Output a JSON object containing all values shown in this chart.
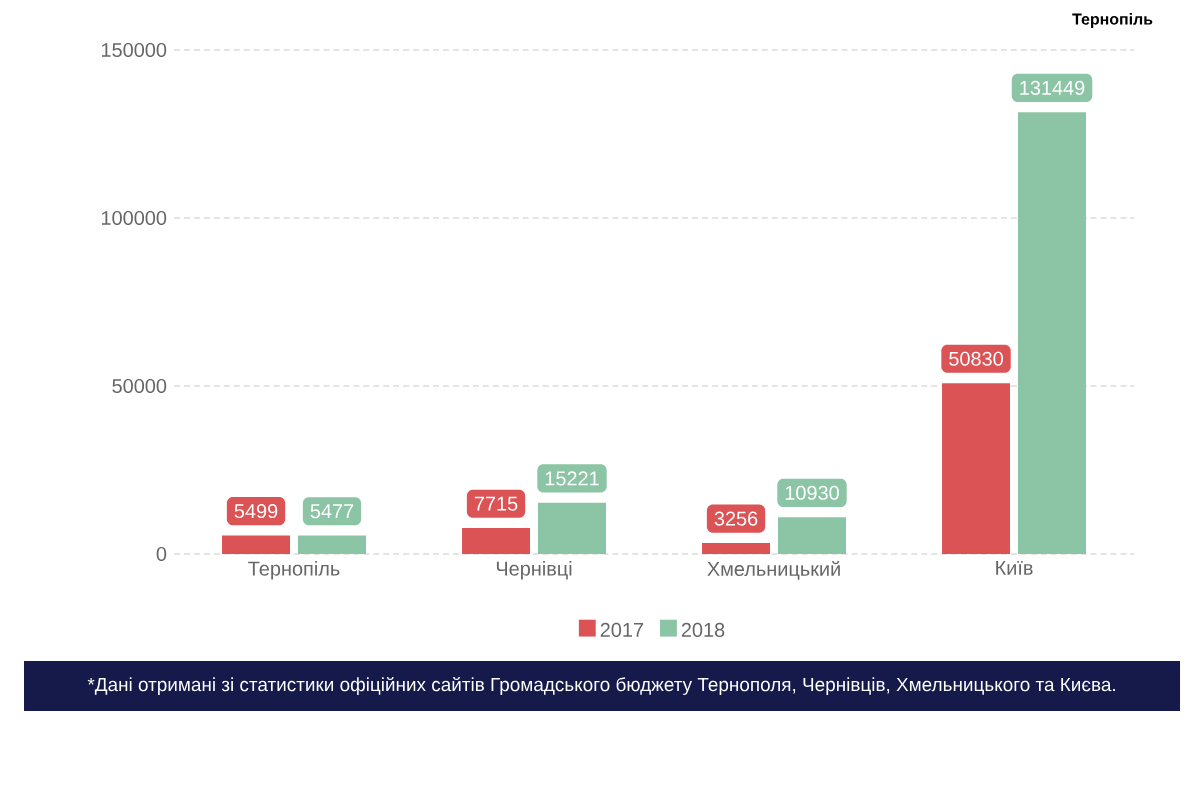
{
  "chart_data": {
    "type": "bar",
    "annotations": [
      "Тернопіль",
      "*Дані отримані зі статистики офіційних сайтів Громадського бюджету Тернополя, Чернівців, Хмельницького та Києва."
    ],
    "categories": [
      "Тернопіль",
      "Чернівці",
      "Хмельницький",
      "Київ"
    ],
    "series": [
      {
        "name": "2017",
        "color": "#dc5356",
        "values": [
          5499,
          7715,
          3256,
          50830
        ]
      },
      {
        "name": "2018",
        "color": "#8cc5a5",
        "values": [
          5477,
          15221,
          10930,
          131449
        ]
      }
    ],
    "ylim": [
      0,
      150000
    ],
    "yticks": [
      0,
      50000,
      100000,
      150000
    ],
    "grid": "y",
    "legend": "bottom",
    "data_labels": true
  }
}
